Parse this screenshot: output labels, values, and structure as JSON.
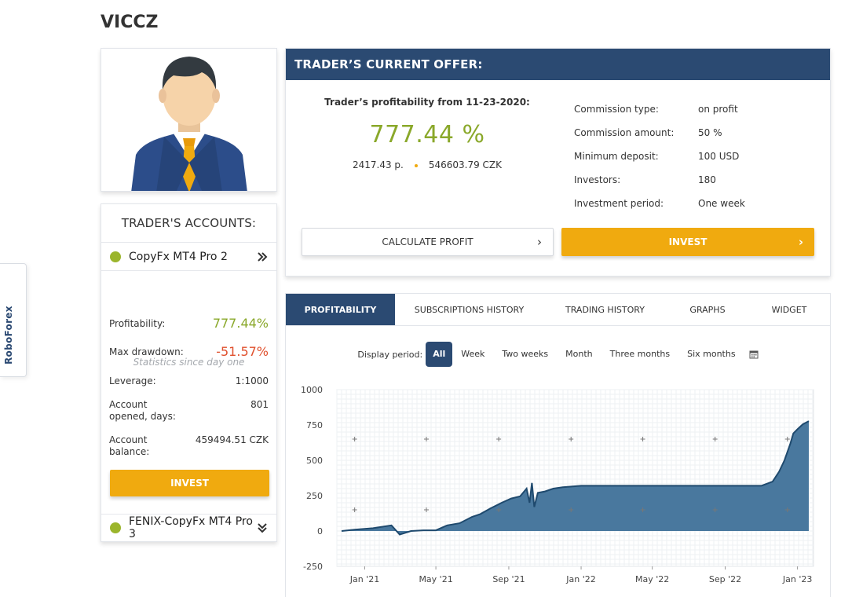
{
  "trader": {
    "name": "VICCZ"
  },
  "side_tab": {
    "label": "RoboForex"
  },
  "accounts": {
    "title": "TRADER'S ACCOUNTS:",
    "items": [
      {
        "label": "CopyFx MT4 Pro 2",
        "status_color": "#9bb52c"
      },
      {
        "label": "FENIX-CopyFx MT4 Pro 3",
        "status_color": "#9bb52c"
      }
    ],
    "stats_note": "Statistics since day one",
    "stats": {
      "profitability_label": "Profitability:",
      "profitability_value": "777.44%",
      "drawdown_label": "Max drawdown:",
      "drawdown_value": "-51.57%",
      "leverage_label": "Leverage:",
      "leverage_value": "1:1000",
      "opened_label": "Account opened, days:",
      "opened_value": "801",
      "balance_label": "Account balance:",
      "balance_value": "459494.51 CZK"
    },
    "invest_label": "INVEST"
  },
  "offer": {
    "title": "TRADER’S CURRENT OFFER:",
    "profit_from": "Trader’s profitability from 11-23-2020:",
    "profit_value": "777.44 %",
    "points": "2417.43 p.",
    "money": "546603.79 CZK",
    "terms": [
      {
        "key": "Commission type:",
        "value": "on profit"
      },
      {
        "key": "Commission amount:",
        "value": "50 %"
      },
      {
        "key": "Minimum deposit:",
        "value": "100 USD"
      },
      {
        "key": "Investors:",
        "value": "180"
      },
      {
        "key": "Investment period:",
        "value": "One week"
      }
    ],
    "calc_label": "CALCULATE PROFIT",
    "invest_label": "INVEST"
  },
  "tabs": [
    "PROFITABILITY",
    "SUBSCRIPTIONS HISTORY",
    "TRADING HISTORY",
    "GRAPHS",
    "WIDGET"
  ],
  "periods": {
    "label": "Display period:",
    "options": [
      "All",
      "Week",
      "Two weeks",
      "Month",
      "Three months",
      "Six months"
    ],
    "selected": "All"
  },
  "colors": {
    "brand_navy": "#2b4a72",
    "accent_orange": "#f0aa0f",
    "positive_green": "#8aa82a",
    "negative_red": "#e0502d",
    "area_fill": "#3f7199"
  },
  "chart_data": {
    "type": "area",
    "ylim": [
      -250,
      1000
    ],
    "yticks": [
      1000,
      750,
      500,
      250,
      0,
      -250
    ],
    "xticks": [
      "Jan '21",
      "May '21",
      "Sep '21",
      "Jan '22",
      "May '22",
      "Sep '22",
      "Jan '23"
    ],
    "grid": true,
    "x": [
      "2020-11-23",
      "2020-12-15",
      "2021-01-15",
      "2021-02-15",
      "2021-03-01",
      "2021-03-20",
      "2021-04-10",
      "2021-05-01",
      "2021-05-20",
      "2021-06-10",
      "2021-07-01",
      "2021-07-15",
      "2021-08-01",
      "2021-08-20",
      "2021-09-05",
      "2021-09-20",
      "2021-10-01",
      "2021-10-06",
      "2021-10-10",
      "2021-10-14",
      "2021-10-20",
      "2021-11-01",
      "2021-11-15",
      "2021-12-01",
      "2022-01-01",
      "2022-03-01",
      "2022-06-01",
      "2022-09-01",
      "2022-10-15",
      "2022-11-01",
      "2022-11-20",
      "2022-12-01",
      "2022-12-10",
      "2022-12-20",
      "2022-12-25",
      "2023-01-01",
      "2023-01-10",
      "2023-01-20"
    ],
    "values": [
      0,
      10,
      20,
      40,
      -25,
      0,
      5,
      5,
      40,
      55,
      100,
      120,
      160,
      200,
      230,
      245,
      300,
      200,
      340,
      170,
      270,
      280,
      300,
      310,
      320,
      320,
      320,
      320,
      320,
      320,
      350,
      420,
      500,
      620,
      690,
      720,
      755,
      777
    ]
  }
}
